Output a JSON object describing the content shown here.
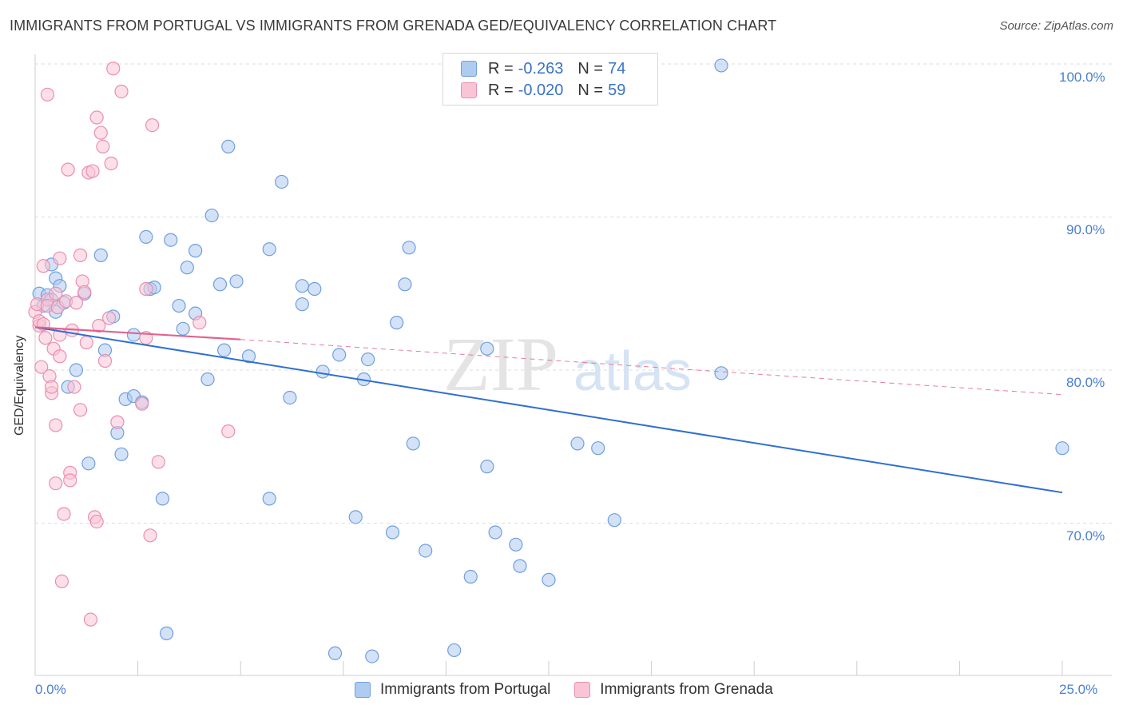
{
  "title": "IMMIGRANTS FROM PORTUGAL VS IMMIGRANTS FROM GRENADA GED/EQUIVALENCY CORRELATION CHART",
  "source": "Source: ZipAtlas.com",
  "watermark": {
    "zip": "ZIP",
    "atlas": "atlas"
  },
  "legend": {
    "rows": [
      {
        "r_label": "R =",
        "r_value": "-0.263",
        "n_label": "N =",
        "n_value": "74",
        "color": "#aecbf0",
        "border": "#6f9fe0"
      },
      {
        "r_label": "R =",
        "r_value": "-0.020",
        "n_label": "N =",
        "n_value": "59",
        "color": "#f9c4d6",
        "border": "#e98fb0"
      }
    ]
  },
  "bottom_legend": [
    {
      "label": "Immigrants from Portugal",
      "color": "#aecbf0",
      "border": "#6f9fe0"
    },
    {
      "label": "Immigrants from Grenada",
      "color": "#f9c4d6",
      "border": "#e98fb0"
    }
  ],
  "axis": {
    "x_min_label": "0.0%",
    "x_max_label": "25.0%",
    "y_ticks": [
      "100.0%",
      "90.0%",
      "80.0%",
      "70.0%"
    ],
    "ylabel": "GED/Equivalency"
  },
  "chart_data": {
    "type": "scatter",
    "title": "IMMIGRANTS FROM PORTUGAL VS IMMIGRANTS FROM GRENADA GED/EQUIVALENCY CORRELATION CHART",
    "xlabel": "",
    "ylabel": "GED/Equivalency",
    "xlim": [
      0,
      25
    ],
    "ylim": [
      61,
      101
    ],
    "y_ticks": [
      100,
      90,
      80,
      70
    ],
    "grid": "horizontal dashed",
    "legend_position": "top-center",
    "series": [
      {
        "name": "Immigrants from Portugal",
        "color": "#6f9fe0",
        "fill": "#aecbf0",
        "r": -0.263,
        "n": 74,
        "trend": {
          "x": [
            0,
            25
          ],
          "y": [
            82.8,
            72.0
          ]
        },
        "points": [
          [
            0.1,
            85.0
          ],
          [
            0.3,
            84.9
          ],
          [
            0.4,
            86.9
          ],
          [
            0.5,
            86.0
          ],
          [
            0.6,
            85.5
          ],
          [
            0.5,
            83.8
          ],
          [
            0.7,
            84.4
          ],
          [
            0.8,
            78.9
          ],
          [
            1.0,
            80.0
          ],
          [
            1.2,
            85.0
          ],
          [
            1.3,
            73.9
          ],
          [
            1.6,
            87.5
          ],
          [
            1.7,
            81.3
          ],
          [
            1.9,
            83.5
          ],
          [
            2.0,
            75.9
          ],
          [
            2.1,
            74.5
          ],
          [
            2.2,
            78.1
          ],
          [
            2.4,
            78.3
          ],
          [
            2.4,
            82.3
          ],
          [
            2.6,
            77.9
          ],
          [
            2.7,
            88.7
          ],
          [
            2.8,
            85.3
          ],
          [
            2.9,
            85.4
          ],
          [
            3.1,
            71.6
          ],
          [
            3.2,
            62.8
          ],
          [
            3.3,
            88.5
          ],
          [
            3.5,
            84.2
          ],
          [
            3.6,
            82.7
          ],
          [
            3.7,
            86.7
          ],
          [
            3.9,
            83.7
          ],
          [
            3.9,
            87.8
          ],
          [
            4.2,
            79.4
          ],
          [
            4.3,
            90.1
          ],
          [
            4.5,
            85.6
          ],
          [
            4.6,
            81.3
          ],
          [
            4.7,
            94.6
          ],
          [
            4.9,
            85.8
          ],
          [
            5.2,
            80.9
          ],
          [
            5.7,
            71.6
          ],
          [
            5.7,
            87.9
          ],
          [
            6.0,
            92.3
          ],
          [
            6.2,
            78.2
          ],
          [
            6.5,
            85.5
          ],
          [
            6.5,
            84.3
          ],
          [
            6.8,
            85.3
          ],
          [
            7.0,
            79.9
          ],
          [
            7.3,
            61.5
          ],
          [
            7.4,
            81.0
          ],
          [
            7.8,
            70.4
          ],
          [
            8.0,
            79.4
          ],
          [
            8.1,
            80.7
          ],
          [
            8.2,
            61.3
          ],
          [
            8.7,
            69.4
          ],
          [
            8.8,
            83.1
          ],
          [
            9.0,
            85.6
          ],
          [
            9.1,
            88.0
          ],
          [
            9.2,
            75.2
          ],
          [
            9.5,
            68.2
          ],
          [
            10.2,
            61.7
          ],
          [
            10.6,
            66.5
          ],
          [
            11.0,
            81.4
          ],
          [
            11.0,
            73.7
          ],
          [
            11.2,
            69.4
          ],
          [
            11.7,
            68.6
          ],
          [
            11.8,
            67.2
          ],
          [
            12.5,
            66.3
          ],
          [
            13.2,
            75.2
          ],
          [
            13.7,
            74.9
          ],
          [
            14.1,
            70.2
          ],
          [
            16.7,
            79.8
          ],
          [
            16.7,
            99.9
          ],
          [
            25.0,
            74.9
          ],
          [
            0.4,
            84.6
          ],
          [
            0.2,
            84.2
          ]
        ]
      },
      {
        "name": "Immigrants from Grenada",
        "color": "#e98fb0",
        "fill": "#f9c4d6",
        "r": -0.02,
        "n": 59,
        "trend": {
          "x": [
            0,
            5
          ],
          "y": [
            82.8,
            82.0
          ],
          "dashed_extension": {
            "x": [
              5,
              25
            ],
            "y": [
              82.0,
              78.4
            ]
          }
        },
        "points": [
          [
            0.0,
            83.8
          ],
          [
            0.05,
            84.3
          ],
          [
            0.1,
            82.9
          ],
          [
            0.1,
            83.2
          ],
          [
            0.15,
            80.2
          ],
          [
            0.2,
            86.8
          ],
          [
            0.25,
            82.1
          ],
          [
            0.3,
            84.6
          ],
          [
            0.3,
            84.2
          ],
          [
            0.35,
            79.6
          ],
          [
            0.4,
            78.5
          ],
          [
            0.4,
            78.9
          ],
          [
            0.45,
            81.4
          ],
          [
            0.5,
            76.4
          ],
          [
            0.5,
            72.6
          ],
          [
            0.55,
            84.1
          ],
          [
            0.6,
            80.9
          ],
          [
            0.6,
            87.3
          ],
          [
            0.6,
            82.3
          ],
          [
            0.65,
            66.2
          ],
          [
            0.7,
            70.6
          ],
          [
            0.75,
            84.5
          ],
          [
            0.8,
            93.1
          ],
          [
            0.85,
            73.3
          ],
          [
            0.85,
            72.8
          ],
          [
            0.9,
            82.6
          ],
          [
            0.95,
            78.9
          ],
          [
            1.0,
            84.4
          ],
          [
            1.1,
            77.4
          ],
          [
            1.1,
            87.5
          ],
          [
            1.15,
            85.8
          ],
          [
            1.2,
            85.1
          ],
          [
            1.25,
            81.8
          ],
          [
            1.3,
            92.9
          ],
          [
            1.35,
            63.7
          ],
          [
            1.4,
            93.0
          ],
          [
            1.45,
            70.4
          ],
          [
            1.5,
            96.5
          ],
          [
            1.5,
            70.1
          ],
          [
            1.55,
            82.9
          ],
          [
            1.6,
            95.5
          ],
          [
            1.65,
            94.6
          ],
          [
            1.7,
            80.6
          ],
          [
            1.8,
            83.4
          ],
          [
            1.85,
            93.5
          ],
          [
            1.9,
            99.7
          ],
          [
            2.0,
            76.6
          ],
          [
            2.1,
            98.2
          ],
          [
            2.6,
            77.8
          ],
          [
            2.7,
            82.1
          ],
          [
            2.7,
            85.3
          ],
          [
            2.8,
            69.2
          ],
          [
            2.85,
            96.0
          ],
          [
            3.0,
            74.0
          ],
          [
            4.0,
            83.1
          ],
          [
            4.7,
            76.0
          ],
          [
            0.3,
            98.0
          ],
          [
            0.5,
            85.0
          ],
          [
            0.2,
            83.0
          ]
        ]
      }
    ]
  }
}
